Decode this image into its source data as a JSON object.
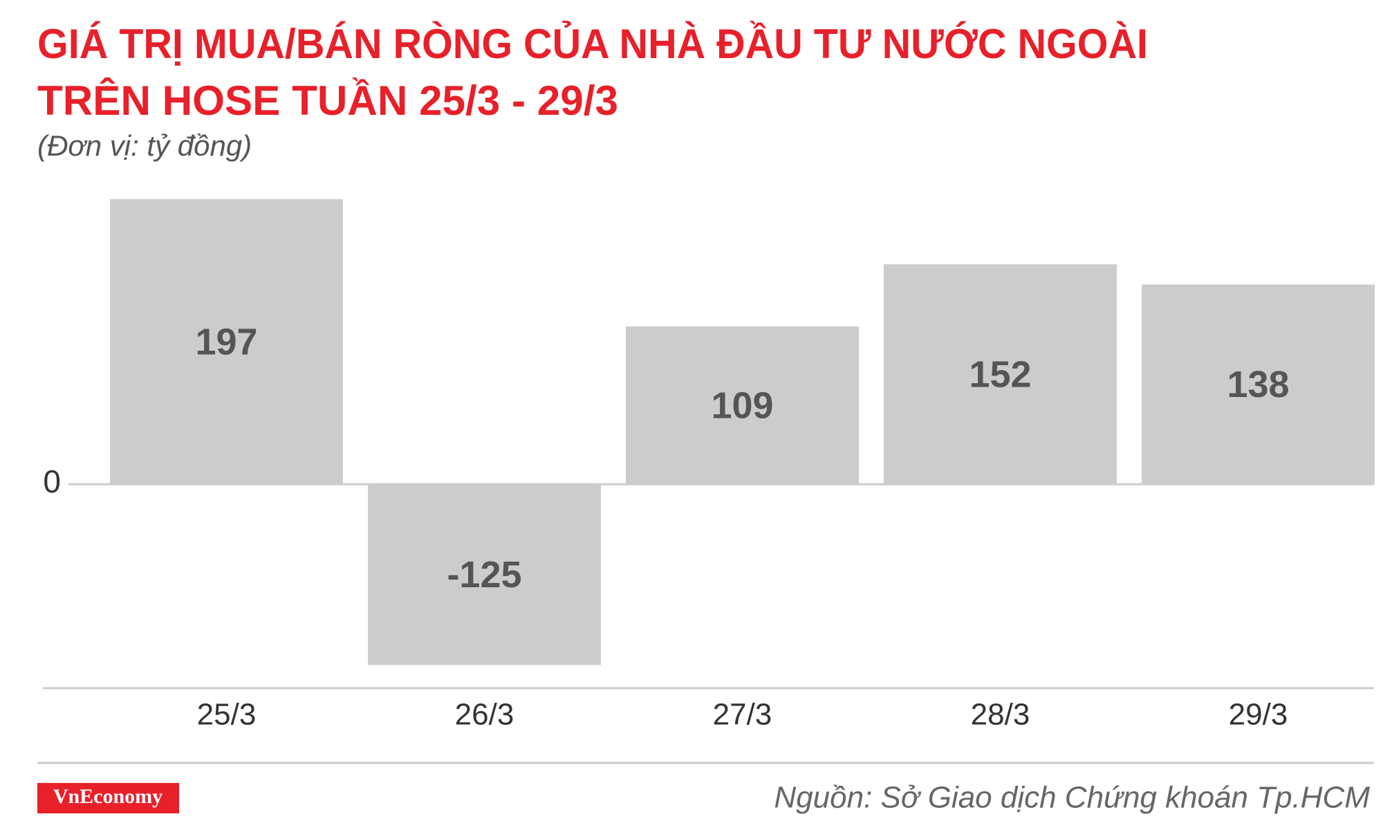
{
  "chart_data": {
    "type": "bar",
    "title": [
      "GIÁ TRỊ MUA/BÁN RÒNG CỦA NHÀ ĐẦU TƯ NƯỚC NGOÀI",
      "TRÊN HOSE TUẦN 25/3 - 29/3"
    ],
    "subtitle": "(Đơn vị: tỷ đồng)",
    "categories": [
      "25/3",
      "26/3",
      "27/3",
      "28/3",
      "29/3"
    ],
    "values": [
      197,
      -125,
      109,
      152,
      138
    ],
    "color": "#cdcccd",
    "ylim": [
      -141,
      197
    ],
    "yticks": [
      0
    ],
    "source": "Nguồn: Sở Giao dịch Chứng khoán Tp.HCM",
    "brand": "VnEconomy"
  }
}
